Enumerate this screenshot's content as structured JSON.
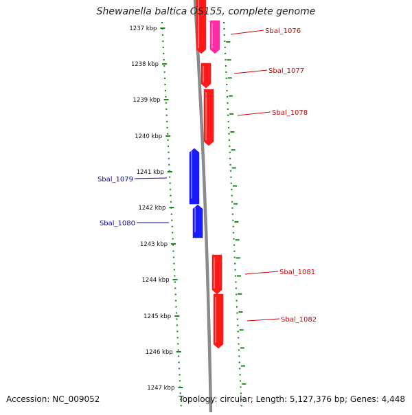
{
  "title": "Shewanella baltica OS155, complete genome",
  "footer": {
    "accession_label": "Accession: NC_009052",
    "topology_label": "Topology: circular; Length: 5,127,376 bp; Genes: 4,448"
  },
  "colors": {
    "forward_gene": "#ff1a1a",
    "forward_gene_highlight": "#ff2ca6",
    "reverse_gene": "#1a1aff",
    "forward_label": "#cc0000",
    "reverse_label": "#0000cc",
    "dna_strand": "#8a8a8a",
    "ruler": "#1a8a1a"
  },
  "ruler_ticks": [
    "1237 kbp",
    "1238 kbp",
    "1239 kbp",
    "1240 kbp",
    "1241 kbp",
    "1242 kbp",
    "1243 kbp",
    "1244 kbp",
    "1245 kbp",
    "1246 kbp",
    "1247 kbp"
  ],
  "genes": [
    {
      "name": "Sbal_1076",
      "strand": "forward",
      "color": "forward_gene"
    },
    {
      "name": "",
      "strand": "forward",
      "color": "forward_gene_highlight"
    },
    {
      "name": "Sbal_1077",
      "strand": "forward",
      "color": "forward_gene"
    },
    {
      "name": "Sbal_1078",
      "strand": "forward",
      "color": "forward_gene"
    },
    {
      "name": "Sbal_1079",
      "strand": "reverse",
      "color": "reverse_gene"
    },
    {
      "name": "Sbal_1080",
      "strand": "reverse",
      "color": "reverse_gene"
    },
    {
      "name": "Sbal_1081",
      "strand": "forward",
      "color": "forward_gene"
    },
    {
      "name": "Sbal_1082",
      "strand": "forward",
      "color": "forward_gene"
    }
  ]
}
